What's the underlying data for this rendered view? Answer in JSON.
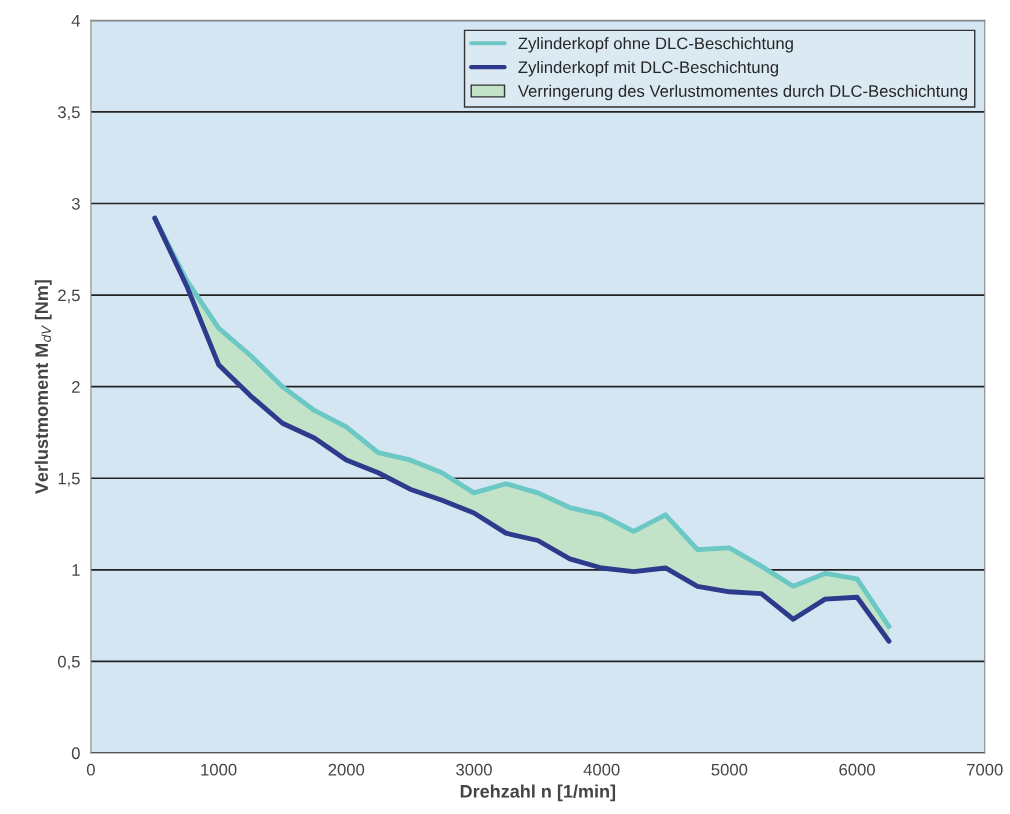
{
  "chart_data": {
    "type": "line",
    "xlabel": "Drehzahl n [1/min]",
    "ylabel": "Verlustmoment M$_{dV}$ [Nm]",
    "x": [
      500,
      750,
      1000,
      1250,
      1500,
      1750,
      2000,
      2250,
      2500,
      2750,
      3000,
      3250,
      3500,
      3750,
      4000,
      4250,
      4500,
      4750,
      5000,
      5250,
      5500,
      5750,
      6000,
      6250
    ],
    "series": [
      {
        "name": "Zylinderkopf ohne DLC-Beschichtung",
        "color": "#6cc8c4",
        "values": [
          2.92,
          2.58,
          2.32,
          2.17,
          2.0,
          1.87,
          1.78,
          1.64,
          1.6,
          1.53,
          1.42,
          1.47,
          1.42,
          1.34,
          1.3,
          1.21,
          1.3,
          1.11,
          1.12,
          1.02,
          0.91,
          0.98,
          0.95,
          0.69
        ],
        "lower": [
          2.92,
          2.55,
          2.12,
          1.95,
          1.8,
          1.72,
          1.6,
          1.53,
          1.44,
          1.38,
          1.31,
          1.2,
          1.16,
          1.06,
          1.01,
          0.99,
          1.01,
          0.91,
          0.88,
          0.87,
          0.73,
          0.84,
          0.85,
          0.61
        ],
        "upper": [
          2.92,
          2.58,
          2.32,
          2.17,
          2.0,
          1.87,
          1.78,
          1.64,
          1.6,
          1.53,
          1.42,
          1.47,
          1.42,
          1.34,
          1.3,
          1.21,
          1.3,
          1.11,
          1.12,
          1.02,
          0.91,
          0.98,
          0.95,
          0.69
        ]
      },
      {
        "name": "Zylinderkopf mit DLC-Beschichtung",
        "color": "#2e3a8c",
        "values": [
          2.92,
          2.55,
          2.12,
          1.95,
          1.8,
          1.72,
          1.6,
          1.53,
          1.44,
          1.38,
          1.31,
          1.2,
          1.16,
          1.06,
          1.01,
          0.99,
          1.01,
          0.91,
          0.88,
          0.87,
          0.73,
          0.84,
          0.85,
          0.61
        ]
      },
      {
        "name": "Verringerung des Verlustmomentes durch DLC-Beschichtung",
        "type": "area",
        "color": "#c2e3c8",
        "values": [
          null,
          null,
          null,
          null,
          null,
          null,
          null,
          null,
          null,
          null,
          null,
          null,
          null,
          null,
          null,
          null,
          null,
          null,
          null,
          null,
          null,
          null,
          null,
          null
        ]
      }
    ],
    "xlim": [
      0,
      7000
    ],
    "xticks": [
      0,
      1000,
      2000,
      3000,
      4000,
      5000,
      6000,
      7000
    ],
    "ylim": [
      0,
      4
    ],
    "yticks": [
      0,
      {
        "value": 0.5,
        "label": "0,5"
      },
      1,
      {
        "value": 1.5,
        "label": "1,5"
      },
      2,
      {
        "value": 2.5,
        "label": "2,5"
      },
      3,
      {
        "value": 3.5,
        "label": "3,5"
      },
      4
    ],
    "grid": "y",
    "legend": "top right",
    "marker": "none",
    "line_style": "solid"
  }
}
